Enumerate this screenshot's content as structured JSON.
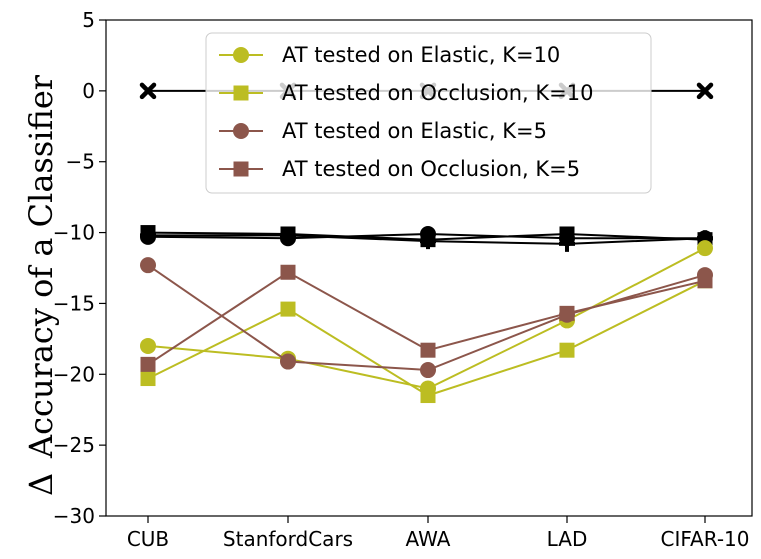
{
  "chart_data": {
    "type": "line",
    "title": "",
    "xlabel": "",
    "ylabel": "Accuracy of a Classifier",
    "ylabel_symbol": "Δ",
    "categories": [
      "CUB",
      "StanfordCars",
      "AWA",
      "LAD",
      "CIFAR-10"
    ],
    "ylim": [
      -30,
      5
    ],
    "yticks": [
      5,
      0,
      -5,
      -10,
      -15,
      -20,
      -25,
      -30
    ],
    "ytick_labels": [
      "5",
      "0",
      "−5",
      "−10",
      "−15",
      "−20",
      "−25",
      "−30"
    ],
    "grid": false,
    "legend_position": "top-center",
    "series": [
      {
        "name": "baseline",
        "in_legend": false,
        "color": "#000000",
        "marker": "x",
        "values": [
          0,
          0,
          0,
          0,
          0
        ]
      },
      {
        "name": "black-series-1",
        "in_legend": false,
        "color": "#000000",
        "marker": "circle",
        "values": [
          -10.3,
          -10.4,
          -10.1,
          -10.4,
          -10.4
        ]
      },
      {
        "name": "black-series-2",
        "in_legend": false,
        "color": "#000000",
        "marker": "square",
        "values": [
          -10.0,
          -10.1,
          -10.5,
          -10.1,
          -10.5
        ]
      },
      {
        "name": "black-series-3",
        "in_legend": false,
        "color": "#000000",
        "marker": "plus",
        "values": [
          -10.2,
          -10.2,
          -10.6,
          -10.8,
          -10.4
        ]
      },
      {
        "name": "AT tested on Elastic, K=10",
        "in_legend": true,
        "color": "#bcbd22",
        "marker": "circle",
        "values": [
          -18.0,
          -18.9,
          -21.0,
          -16.2,
          -11.1
        ]
      },
      {
        "name": "AT tested on Occlusion, K=10",
        "in_legend": true,
        "color": "#bcbd22",
        "marker": "square",
        "values": [
          -20.3,
          -15.4,
          -21.5,
          -18.3,
          -13.4
        ]
      },
      {
        "name": "AT tested on Elastic, K=5",
        "in_legend": true,
        "color": "#8c564b",
        "marker": "circle",
        "values": [
          -12.3,
          -19.1,
          -19.7,
          -15.8,
          -13.0
        ]
      },
      {
        "name": "AT tested on Occlusion, K=5",
        "in_legend": true,
        "color": "#8c564b",
        "marker": "square",
        "values": [
          -19.3,
          -12.8,
          -18.3,
          -15.7,
          -13.4
        ]
      }
    ]
  }
}
